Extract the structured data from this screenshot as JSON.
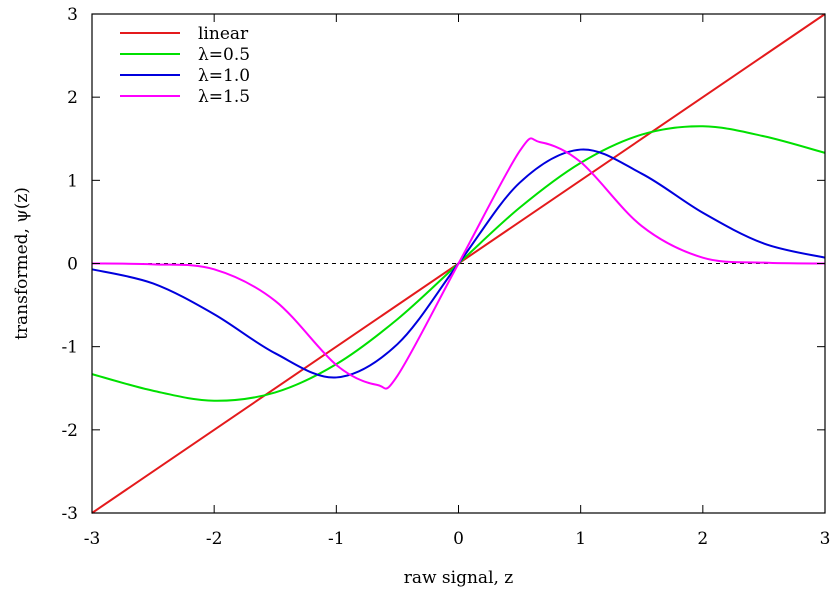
{
  "chart_data": {
    "type": "line",
    "title": "",
    "xlabel": "raw signal, z",
    "ylabel": "transformed, ψ(z)",
    "xlim": [
      -3,
      3
    ],
    "ylim": [
      -3,
      3
    ],
    "xticks": [
      -3,
      -2,
      -1,
      0,
      1,
      2,
      3
    ],
    "yticks": [
      -3,
      -2,
      -1,
      0,
      1,
      2,
      3
    ],
    "grid": false,
    "legend_position": "top-left",
    "zero_line": {
      "y": 0,
      "style": "dashed",
      "color": "#000000"
    },
    "series": [
      {
        "name": "linear",
        "color": "#e41a1c",
        "x": [
          -3,
          3
        ],
        "y": [
          -3,
          3
        ]
      },
      {
        "name": "λ=0.5",
        "color": "#00e000",
        "x": [
          -3,
          -2.5,
          -2,
          -1.5,
          -1,
          -0.5,
          0,
          0.5,
          1,
          1.5,
          2,
          2.5,
          3
        ],
        "y": [
          -1.33,
          -1.53,
          -1.65,
          -1.55,
          -1.21,
          -0.67,
          0,
          0.67,
          1.21,
          1.55,
          1.65,
          1.53,
          1.33
        ]
      },
      {
        "name": "λ=1.0",
        "color": "#0000dd",
        "x": [
          -3,
          -2.5,
          -2,
          -1.5,
          -1,
          -0.5,
          0,
          0.5,
          1,
          1.5,
          2,
          2.5,
          3
        ],
        "y": [
          -0.07,
          -0.24,
          -0.61,
          -1.08,
          -1.37,
          -0.97,
          0,
          0.97,
          1.37,
          1.08,
          0.61,
          0.24,
          0.07
        ]
      },
      {
        "name": "λ=1.5",
        "color": "#ff00ff",
        "x": [
          -3,
          -2.5,
          -2,
          -1.5,
          -1,
          -0.667,
          -0.5,
          0,
          0.5,
          0.667,
          1,
          1.5,
          2,
          2.5,
          3
        ],
        "y": [
          0,
          -0.01,
          -0.07,
          -0.45,
          -1.22,
          -1.46,
          -1.35,
          0,
          1.35,
          1.46,
          1.22,
          0.45,
          0.07,
          0.01,
          0
        ]
      }
    ]
  }
}
